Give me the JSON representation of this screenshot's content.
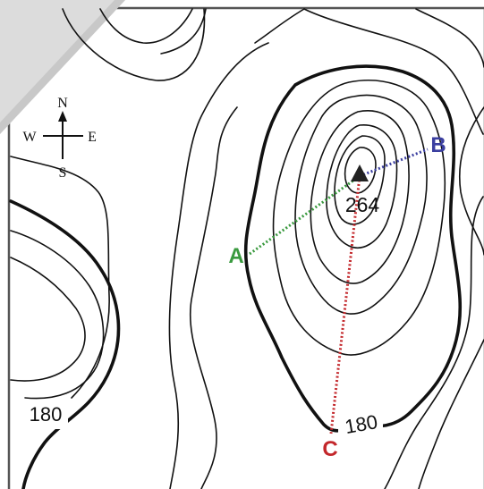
{
  "compass": {
    "north": "N",
    "south": "S",
    "east": "E",
    "west": "W"
  },
  "summit": {
    "elevation": "264"
  },
  "contours": {
    "index_label_left": "180",
    "index_label_bottom": "180"
  },
  "points": {
    "a": {
      "label": "A",
      "color": "#3a9a3f"
    },
    "b": {
      "label": "B",
      "color": "#3b3fa0"
    },
    "c": {
      "label": "C",
      "color": "#c3272b"
    }
  },
  "colors": {
    "contour": "#111111",
    "frame": "#555555",
    "corner_fold": "#dcdcdc"
  }
}
